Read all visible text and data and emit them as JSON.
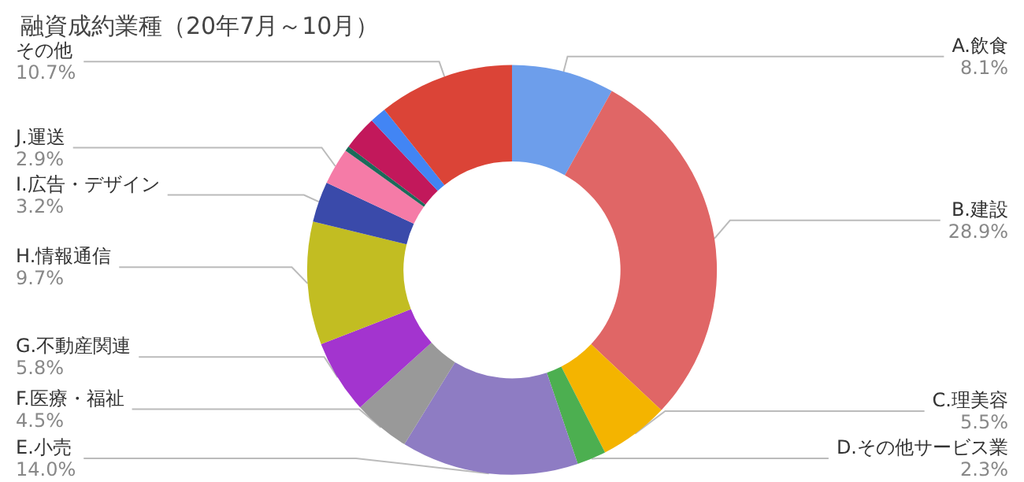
{
  "chart_data": {
    "type": "donut",
    "title": "融資成約業種（20年7月～10月）",
    "categories": [
      "A.飲食",
      "B.建設",
      "C.理美容",
      "D.その他サービス業",
      "E.小売",
      "F.医療・福祉",
      "G.不動産関連",
      "H.情報通信",
      "I.広告・デザイン",
      "J.運送",
      null,
      null,
      null,
      "その他"
    ],
    "values": [
      8.1,
      28.9,
      5.5,
      2.3,
      14.0,
      4.5,
      5.8,
      9.7,
      3.2,
      2.9,
      0.4,
      2.7,
      1.3,
      10.7
    ],
    "value_labels": [
      "8.1%",
      "28.9%",
      "5.5%",
      "2.3%",
      "14.0%",
      "4.5%",
      "5.8%",
      "9.7%",
      "3.2%",
      "2.9%",
      null,
      null,
      null,
      "10.7%"
    ],
    "colors": [
      "#6d9eeb",
      "#e06666",
      "#f4b400",
      "#4caf50",
      "#8e7cc3",
      "#999999",
      "#a334cf",
      "#c2bd22",
      "#3a4aaa",
      "#f57ba7",
      "#1b6b5a",
      "#c2185b",
      "#4285f4",
      "#db4437"
    ],
    "legend": false
  }
}
